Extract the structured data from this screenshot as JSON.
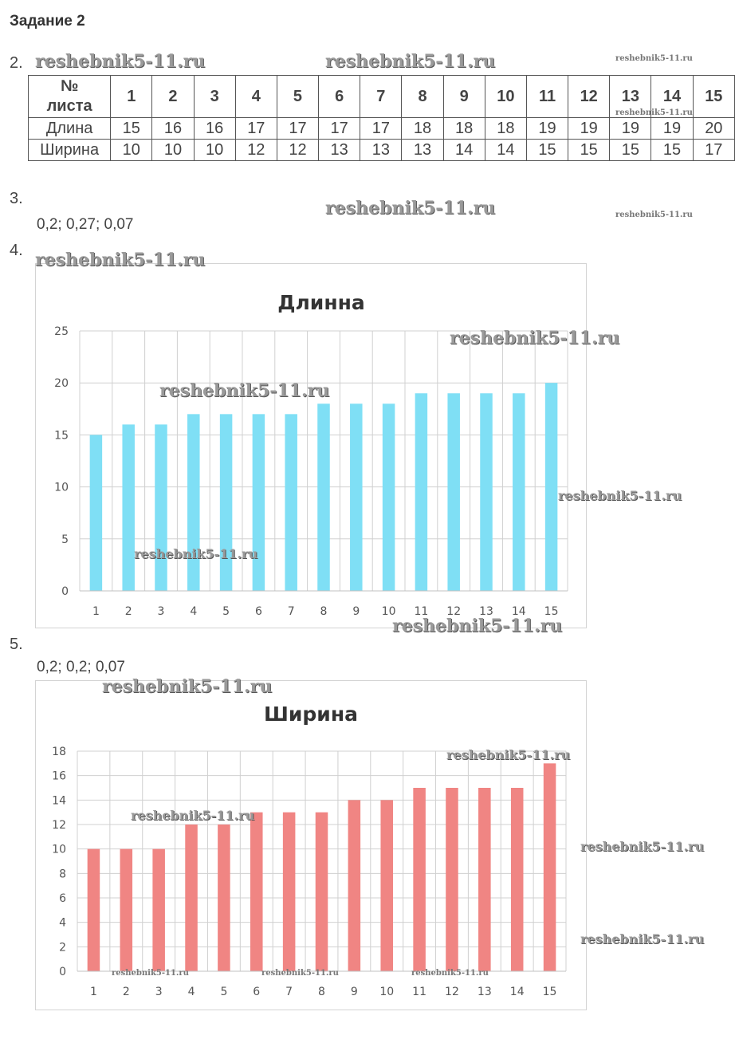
{
  "heading": "Задание 2",
  "watermark": "reshebnik5-11.ru",
  "task2": {
    "number": "2.",
    "header_label": "№ листа",
    "header_label_line1": "№",
    "header_label_line2": "листа",
    "sheets": [
      "1",
      "2",
      "3",
      "4",
      "5",
      "6",
      "7",
      "8",
      "9",
      "10",
      "11",
      "12",
      "13",
      "14",
      "15"
    ],
    "rows": [
      {
        "label": "Длина",
        "values": [
          "15",
          "16",
          "16",
          "17",
          "17",
          "17",
          "17",
          "18",
          "18",
          "18",
          "19",
          "19",
          "19",
          "19",
          "20"
        ]
      },
      {
        "label": "Ширина",
        "values": [
          "10",
          "10",
          "10",
          "12",
          "12",
          "13",
          "13",
          "13",
          "14",
          "14",
          "15",
          "15",
          "15",
          "15",
          "17"
        ]
      }
    ]
  },
  "task3": {
    "number": "3.",
    "answer": "0,2; 0,27; 0,07"
  },
  "task4": {
    "number": "4."
  },
  "task5": {
    "number": "5.",
    "answer": "0,2; 0,2; 0,07"
  },
  "chart_data": [
    {
      "type": "bar",
      "title": "Длинна",
      "categories": [
        "1",
        "2",
        "3",
        "4",
        "5",
        "6",
        "7",
        "8",
        "9",
        "10",
        "11",
        "12",
        "13",
        "14",
        "15"
      ],
      "values": [
        15,
        16,
        16,
        17,
        17,
        17,
        17,
        18,
        18,
        18,
        19,
        19,
        19,
        19,
        20
      ],
      "ylim": [
        0,
        25
      ],
      "yticks": [
        0,
        5,
        10,
        15,
        20,
        25
      ],
      "xlabel": "",
      "ylabel": "",
      "grid": true,
      "color": "#7fdff5"
    },
    {
      "type": "bar",
      "title": "Ширина",
      "categories": [
        "1",
        "2",
        "3",
        "4",
        "5",
        "6",
        "7",
        "8",
        "9",
        "10",
        "11",
        "12",
        "13",
        "14",
        "15"
      ],
      "values": [
        10,
        10,
        10,
        12,
        12,
        13,
        13,
        13,
        14,
        14,
        15,
        15,
        15,
        15,
        17
      ],
      "ylim": [
        0,
        18
      ],
      "yticks": [
        0,
        2,
        4,
        6,
        8,
        10,
        12,
        14,
        16,
        18
      ],
      "xlabel": "",
      "ylabel": "",
      "grid": true,
      "color": "#f08583"
    }
  ]
}
